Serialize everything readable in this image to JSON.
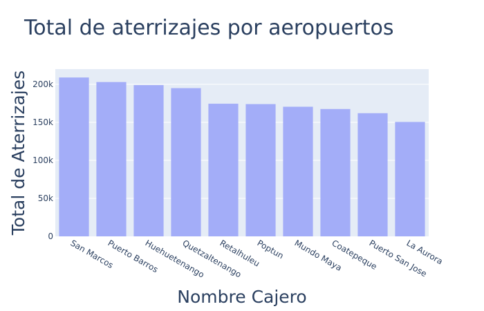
{
  "chart_data": {
    "type": "bar",
    "title": "Total de aterrizajes por aeropuertos",
    "xlabel": "Nombre Cajero",
    "ylabel": "Total de Aterrizajes",
    "categories": [
      "San Marcos",
      "Puerto Barros",
      "Huehuetenango",
      "Quetzaltenango",
      "Retalhuleu",
      "Poptun",
      "Mundo Maya",
      "Coatepeque",
      "Puerto San Jose",
      "La Aurora"
    ],
    "values": [
      209000,
      203000,
      199000,
      195000,
      174500,
      174000,
      170500,
      167500,
      162000,
      150500
    ],
    "ylim": [
      0,
      220000
    ],
    "yticks": [
      0,
      50000,
      100000,
      150000,
      200000
    ],
    "ytick_labels": [
      "0",
      "50k",
      "100k",
      "150k",
      "200k"
    ],
    "grid": true,
    "colors": {
      "bar": "#a3adf8",
      "plot_bg": "#e5ecf6",
      "grid": "#ffffff",
      "text": "#2a3f5f"
    }
  }
}
